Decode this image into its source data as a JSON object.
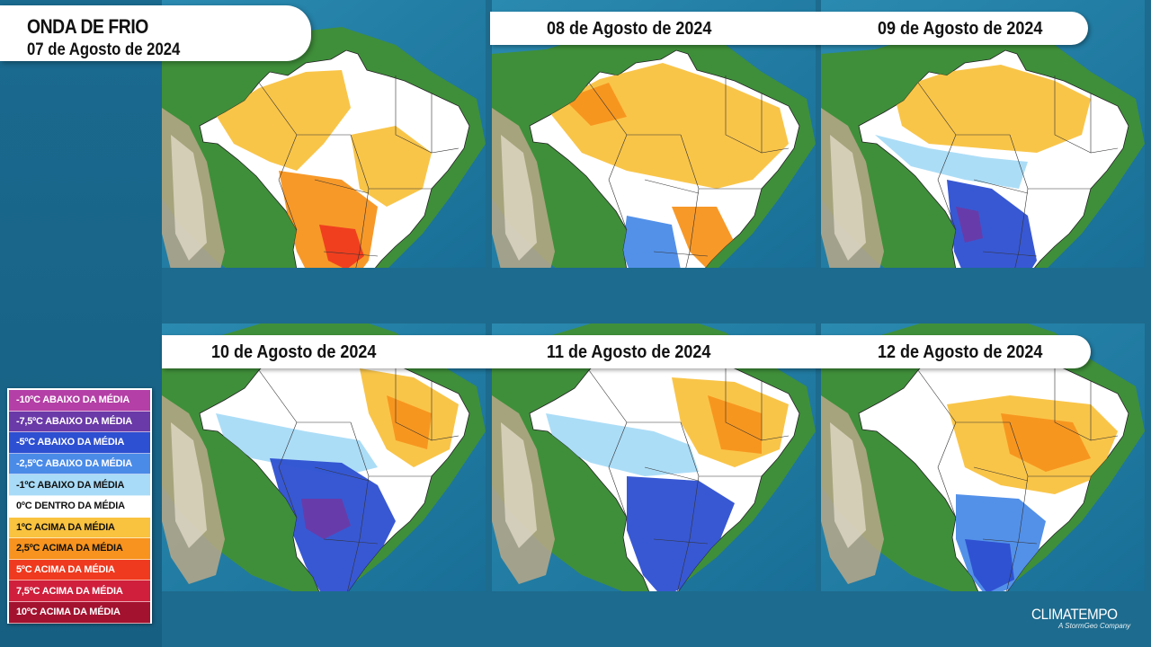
{
  "header": {
    "title": "ONDA DE FRIO",
    "first_date": "07 de Agosto de 2024"
  },
  "panels": [
    {
      "date": "07 de Agosto de 2024",
      "anomaly_pattern": "warm_west_south"
    },
    {
      "date": "08 de Agosto de 2024",
      "anomaly_pattern": "warm_with_cold_southwest"
    },
    {
      "date": "09 de Agosto de 2024",
      "anomaly_pattern": "cold_front_southwest"
    },
    {
      "date": "10 de Agosto de 2024",
      "anomaly_pattern": "cold_center_south"
    },
    {
      "date": "11 de Agosto de 2024",
      "anomaly_pattern": "cold_south_warm_center"
    },
    {
      "date": "12 de Agosto de 2024",
      "anomaly_pattern": "cold_far_south_warm_center"
    }
  ],
  "legend": [
    {
      "label": "-10ºC ABAIXO DA MÉDIA",
      "color": "#b43fa6",
      "dark_text": false
    },
    {
      "label": "-7,5ºC ABAIXO DA MÉDIA",
      "color": "#6a3aa8",
      "dark_text": false
    },
    {
      "label": "-5ºC ABAIXO DA MÉDIA",
      "color": "#2d4fd1",
      "dark_text": false
    },
    {
      "label": "-2,5ºC ABAIXO DA MÉDIA",
      "color": "#4a8be8",
      "dark_text": false
    },
    {
      "label": "-1ºC ABAIXO DA MÉDIA",
      "color": "#a8dbf7",
      "dark_text": true
    },
    {
      "label": "0ºC DENTRO DA MÉDIA",
      "color": "#ffffff",
      "dark_text": true
    },
    {
      "label": "1ºC ACIMA DA MÉDIA",
      "color": "#f9c23f",
      "dark_text": true
    },
    {
      "label": "2,5ºC ACIMA DA MÉDIA",
      "color": "#f7931e",
      "dark_text": true
    },
    {
      "label": "5ºC ACIMA DA MÉDIA",
      "color": "#ef3a1f",
      "dark_text": false
    },
    {
      "label": "7,5ºC ACIMA DA MÉDIA",
      "color": "#d01f3c",
      "dark_text": false
    },
    {
      "label": "10ºC ACIMA DA MÉDIA",
      "color": "#a3122f",
      "dark_text": false
    }
  ],
  "brand": {
    "name": "CLIMATEMPO",
    "tagline": "A StormGeo Company"
  }
}
